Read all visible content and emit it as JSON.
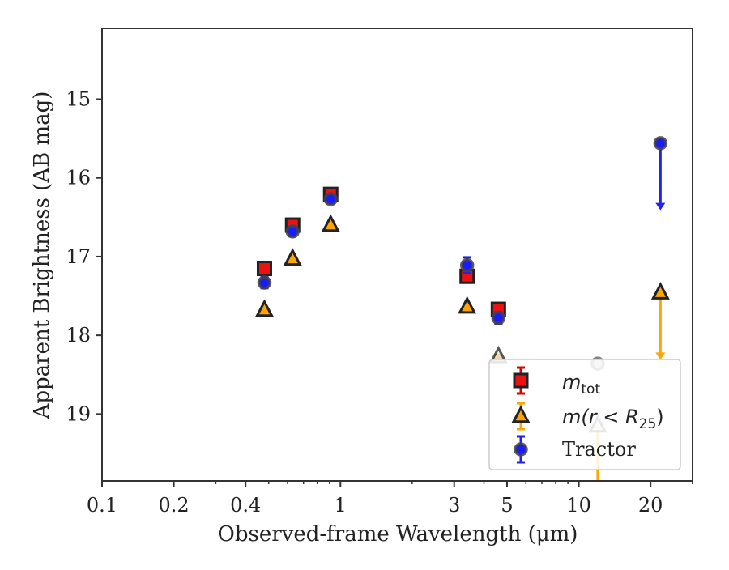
{
  "chart_data": {
    "type": "scatter",
    "title": "",
    "xlabel": "Observed-frame Wavelength (μm)",
    "ylabel": "Apparent Brightness (AB mag)",
    "x_scale": "log",
    "y_inverted": true,
    "xlim": [
      0.1,
      30
    ],
    "ylim": [
      19.85,
      14.1
    ],
    "x_ticks": [
      {
        "value": 0.1,
        "label": "0.1"
      },
      {
        "value": 0.2,
        "label": "0.2"
      },
      {
        "value": 0.4,
        "label": "0.4"
      },
      {
        "value": 1,
        "label": "1"
      },
      {
        "value": 3,
        "label": "3"
      },
      {
        "value": 5,
        "label": "5"
      },
      {
        "value": 10,
        "label": "10"
      },
      {
        "value": 20,
        "label": "20"
      }
    ],
    "y_ticks": [
      {
        "value": 15,
        "label": "15"
      },
      {
        "value": 16,
        "label": "16"
      },
      {
        "value": 17,
        "label": "17"
      },
      {
        "value": 18,
        "label": "18"
      },
      {
        "value": 19,
        "label": "19"
      }
    ],
    "grid": false,
    "legend_position": "bottom-right",
    "series": [
      {
        "name": "m_tot",
        "legend_label": "m_tot",
        "marker": "square",
        "face_color": "#ee1111",
        "edge_color": "#222222",
        "error_color": "#dd0000",
        "points": [
          {
            "x": 0.48,
            "y": 17.15,
            "err": 0.08
          },
          {
            "x": 0.63,
            "y": 16.6,
            "err": 0.06
          },
          {
            "x": 0.91,
            "y": 16.21,
            "err": 0.05
          },
          {
            "x": 3.4,
            "y": 17.25,
            "err": 0.07
          },
          {
            "x": 4.6,
            "y": 17.67,
            "err": 0.08
          }
        ]
      },
      {
        "name": "m(r < R25)",
        "legend_label": "m(r < R25)",
        "marker": "triangle",
        "face_color": "#ffa500",
        "edge_color": "#222222",
        "error_color": "#ffa500",
        "points": [
          {
            "x": 0.48,
            "y": 17.68,
            "err": 0.02
          },
          {
            "x": 0.63,
            "y": 17.03,
            "err": 0.02
          },
          {
            "x": 0.91,
            "y": 16.6,
            "err": 0.02
          },
          {
            "x": 3.4,
            "y": 17.64,
            "err": 0.02
          },
          {
            "x": 4.6,
            "y": 18.27,
            "err": 0.02
          },
          {
            "x": 12,
            "y": 19.15,
            "err": 0.0,
            "lower_bound_to": 19.85
          },
          {
            "x": 22,
            "y": 17.46,
            "err": 0.0,
            "upper_limit_arrow_to": 18.3
          }
        ]
      },
      {
        "name": "Tractor",
        "legend_label": "Tractor",
        "marker": "circle",
        "face_color": "#1a1aff",
        "edge_color": "#444444",
        "error_color": "#2222ee",
        "points": [
          {
            "x": 0.48,
            "y": 17.33,
            "err": 0.07
          },
          {
            "x": 0.63,
            "y": 16.68,
            "err": 0.06
          },
          {
            "x": 0.91,
            "y": 16.27,
            "err": 0.05
          },
          {
            "x": 3.4,
            "y": 17.11,
            "err": 0.1
          },
          {
            "x": 4.6,
            "y": 17.78,
            "err": 0.07
          },
          {
            "x": 12,
            "y": 18.36,
            "err": 0.0
          },
          {
            "x": 22,
            "y": 15.56,
            "err": 0.0,
            "upper_limit_arrow_to": 16.4
          }
        ]
      }
    ]
  }
}
